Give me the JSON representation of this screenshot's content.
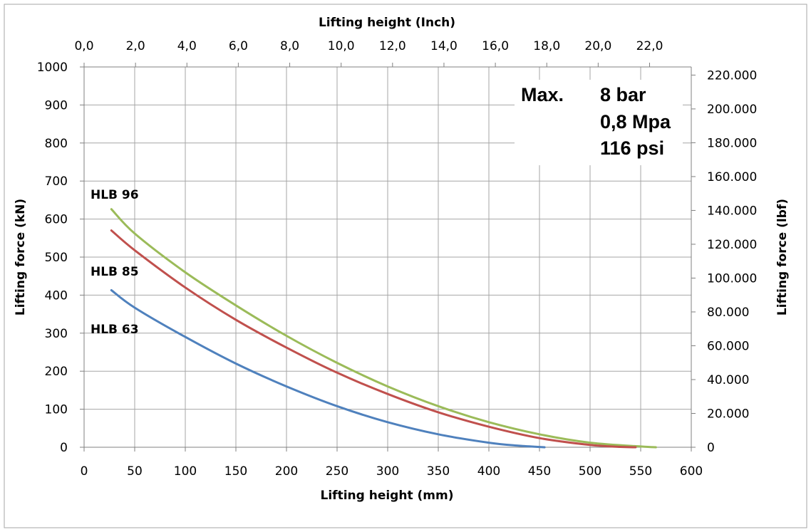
{
  "chart_data": {
    "type": "line",
    "xlabel": "Lifting height (mm)",
    "ylabel": "Lifting force (kN)",
    "x2label": "Lifting height (Inch)",
    "y2label": "Lifting force (lbf)",
    "xlim": [
      0,
      600
    ],
    "ylim": [
      0,
      1000
    ],
    "x2lim": [
      0,
      23.622
    ],
    "y2lim": [
      0,
      224809
    ],
    "x_ticks": [
      "0",
      "50",
      "100",
      "150",
      "200",
      "250",
      "300",
      "350",
      "400",
      "450",
      "500",
      "550",
      "600"
    ],
    "x_tick_values": [
      0,
      50,
      100,
      150,
      200,
      250,
      300,
      350,
      400,
      450,
      500,
      550,
      600
    ],
    "y_ticks": [
      "0",
      "100",
      "200",
      "300",
      "400",
      "500",
      "600",
      "700",
      "800",
      "900",
      "1000"
    ],
    "y_tick_values": [
      0,
      100,
      200,
      300,
      400,
      500,
      600,
      700,
      800,
      900,
      1000
    ],
    "x2_ticks": [
      "0,0",
      "2,0",
      "4,0",
      "6,0",
      "8,0",
      "10,0",
      "12,0",
      "14,0",
      "16,0",
      "18,0",
      "20,0",
      "22,0"
    ],
    "x2_tick_values": [
      0,
      2,
      4,
      6,
      8,
      10,
      12,
      14,
      16,
      18,
      20,
      22
    ],
    "y2_ticks": [
      "0",
      "20.000",
      "40.000",
      "60.000",
      "80.000",
      "100.000",
      "120.000",
      "140.000",
      "160.000",
      "180.000",
      "200.000",
      "220.000"
    ],
    "y2_tick_values": [
      0,
      20000,
      40000,
      60000,
      80000,
      100000,
      120000,
      140000,
      160000,
      180000,
      200000,
      220000
    ],
    "grid": true,
    "series": [
      {
        "name": "HLB 96",
        "color": "#9bbb59",
        "x": [
          27,
          50,
          100,
          150,
          200,
          250,
          300,
          350,
          400,
          450,
          500,
          550,
          565
        ],
        "y": [
          626,
          562,
          460,
          373,
          293,
          222,
          160,
          108,
          66,
          34,
          12,
          2,
          0
        ]
      },
      {
        "name": "HLB 85",
        "color": "#c0504d",
        "x": [
          27,
          50,
          100,
          150,
          200,
          250,
          300,
          350,
          400,
          450,
          500,
          530,
          545
        ],
        "y": [
          570,
          518,
          420,
          335,
          262,
          196,
          140,
          92,
          54,
          24,
          6,
          1,
          0
        ]
      },
      {
        "name": "HLB 63",
        "color": "#4f81bd",
        "x": [
          27,
          50,
          100,
          150,
          200,
          250,
          300,
          350,
          400,
          430,
          455
        ],
        "y": [
          413,
          367,
          290,
          220,
          160,
          108,
          66,
          34,
          12,
          4,
          0
        ]
      }
    ],
    "annotation": {
      "label": "Max.",
      "lines": [
        "8 bar",
        "0,8 Mpa",
        "116 psi"
      ]
    }
  }
}
